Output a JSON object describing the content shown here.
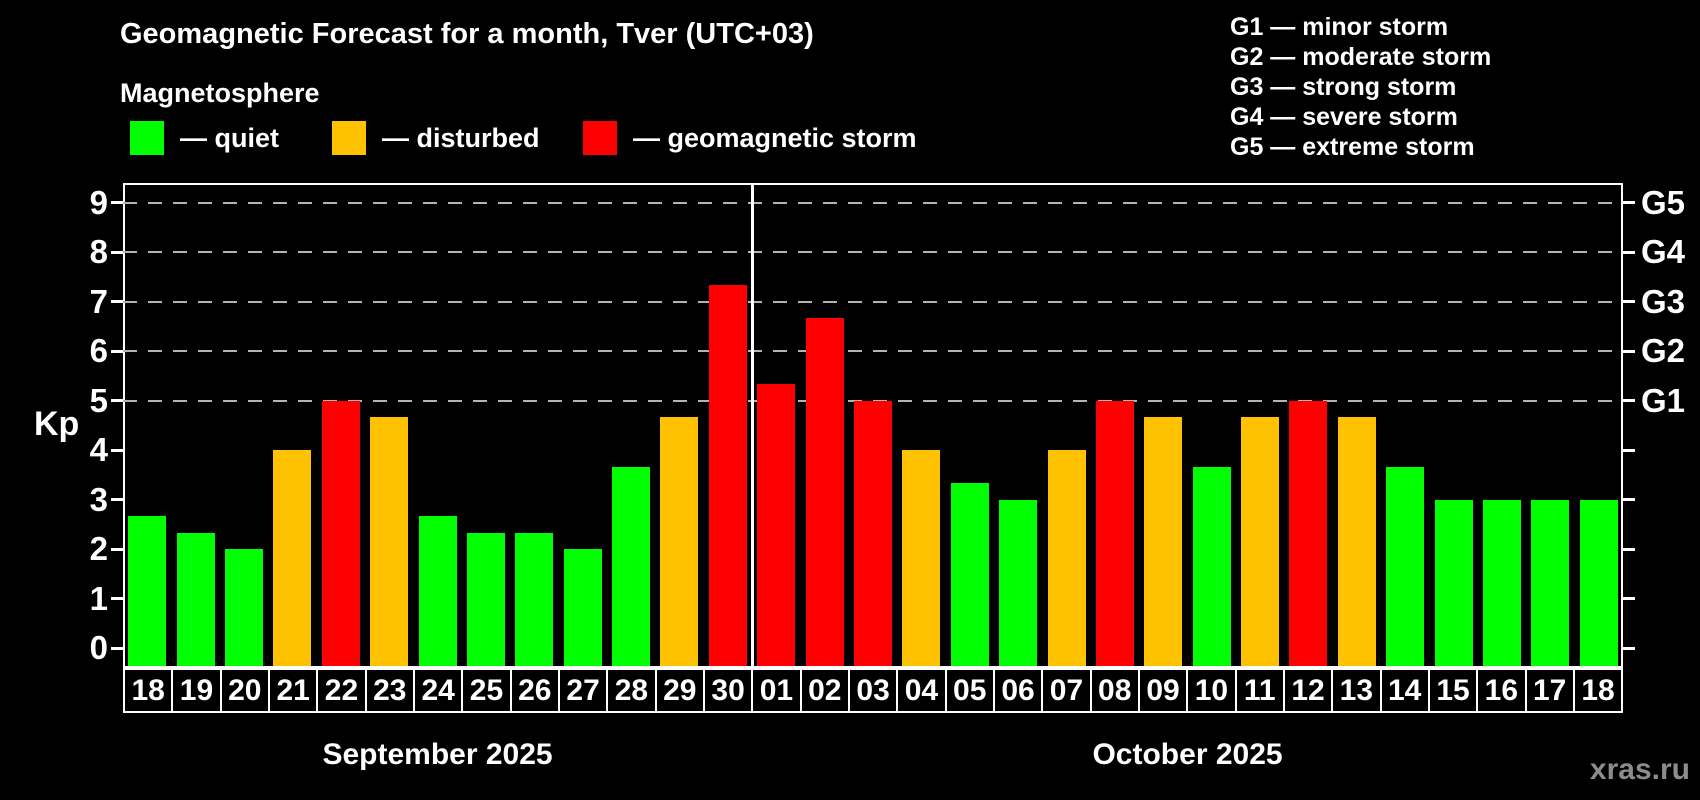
{
  "header": {
    "title": "Geomagnetic Forecast for a month, Tver (UTC+03)",
    "subtitle": "Magnetosphere"
  },
  "legend": {
    "items": [
      {
        "name": "quiet",
        "label": "— quiet",
        "color": "#00ff00"
      },
      {
        "name": "disturbed",
        "label": "— disturbed",
        "color": "#ffc200"
      },
      {
        "name": "storm",
        "label": "— geomagnetic storm",
        "color": "#ff0000"
      }
    ]
  },
  "g_legend": {
    "lines": [
      "G1 — minor storm",
      "G2 — moderate storm",
      "G3 — strong storm",
      "G4 — severe storm",
      "G5 — extreme storm"
    ]
  },
  "chart_data": {
    "type": "bar",
    "title": "Geomagnetic Forecast for a month, Tver (UTC+03)",
    "ylabel": "Kp",
    "ylim": [
      -0.4,
      9.4
    ],
    "y_ticks": [
      0,
      1,
      2,
      3,
      4,
      5,
      6,
      7,
      8,
      9
    ],
    "gridline_levels": [
      5,
      6,
      7,
      8,
      9
    ],
    "right_axis_labels": [
      {
        "level": 5,
        "label": "G1"
      },
      {
        "level": 6,
        "label": "G2"
      },
      {
        "level": 7,
        "label": "G3"
      },
      {
        "level": 8,
        "label": "G4"
      },
      {
        "level": 9,
        "label": "G5"
      }
    ],
    "status_colors": {
      "quiet": "#00ff00",
      "disturbed": "#ffc200",
      "storm": "#ff0000"
    },
    "months": [
      {
        "label": "September 2025",
        "days": [
          {
            "day": "18",
            "kp": 2.67,
            "status": "quiet"
          },
          {
            "day": "19",
            "kp": 2.33,
            "status": "quiet"
          },
          {
            "day": "20",
            "kp": 2.0,
            "status": "quiet"
          },
          {
            "day": "21",
            "kp": 4.0,
            "status": "disturbed"
          },
          {
            "day": "22",
            "kp": 5.0,
            "status": "storm"
          },
          {
            "day": "23",
            "kp": 4.67,
            "status": "disturbed"
          },
          {
            "day": "24",
            "kp": 2.67,
            "status": "quiet"
          },
          {
            "day": "25",
            "kp": 2.33,
            "status": "quiet"
          },
          {
            "day": "26",
            "kp": 2.33,
            "status": "quiet"
          },
          {
            "day": "27",
            "kp": 2.0,
            "status": "quiet"
          },
          {
            "day": "28",
            "kp": 3.67,
            "status": "quiet"
          },
          {
            "day": "29",
            "kp": 4.67,
            "status": "disturbed"
          },
          {
            "day": "30",
            "kp": 7.33,
            "status": "storm"
          }
        ]
      },
      {
        "label": "October 2025",
        "days": [
          {
            "day": "01",
            "kp": 5.33,
            "status": "storm"
          },
          {
            "day": "02",
            "kp": 6.67,
            "status": "storm"
          },
          {
            "day": "03",
            "kp": 5.0,
            "status": "storm"
          },
          {
            "day": "04",
            "kp": 4.0,
            "status": "disturbed"
          },
          {
            "day": "05",
            "kp": 3.33,
            "status": "quiet"
          },
          {
            "day": "06",
            "kp": 3.0,
            "status": "quiet"
          },
          {
            "day": "07",
            "kp": 4.0,
            "status": "disturbed"
          },
          {
            "day": "08",
            "kp": 5.0,
            "status": "storm"
          },
          {
            "day": "09",
            "kp": 4.67,
            "status": "disturbed"
          },
          {
            "day": "10",
            "kp": 3.67,
            "status": "quiet"
          },
          {
            "day": "11",
            "kp": 4.67,
            "status": "disturbed"
          },
          {
            "day": "12",
            "kp": 5.0,
            "status": "storm"
          },
          {
            "day": "13",
            "kp": 4.67,
            "status": "disturbed"
          },
          {
            "day": "14",
            "kp": 3.67,
            "status": "quiet"
          },
          {
            "day": "15",
            "kp": 3.0,
            "status": "quiet"
          },
          {
            "day": "16",
            "kp": 3.0,
            "status": "quiet"
          },
          {
            "day": "17",
            "kp": 3.0,
            "status": "quiet"
          },
          {
            "day": "18",
            "kp": 3.0,
            "status": "quiet"
          }
        ]
      }
    ]
  },
  "watermark": "xras.ru"
}
